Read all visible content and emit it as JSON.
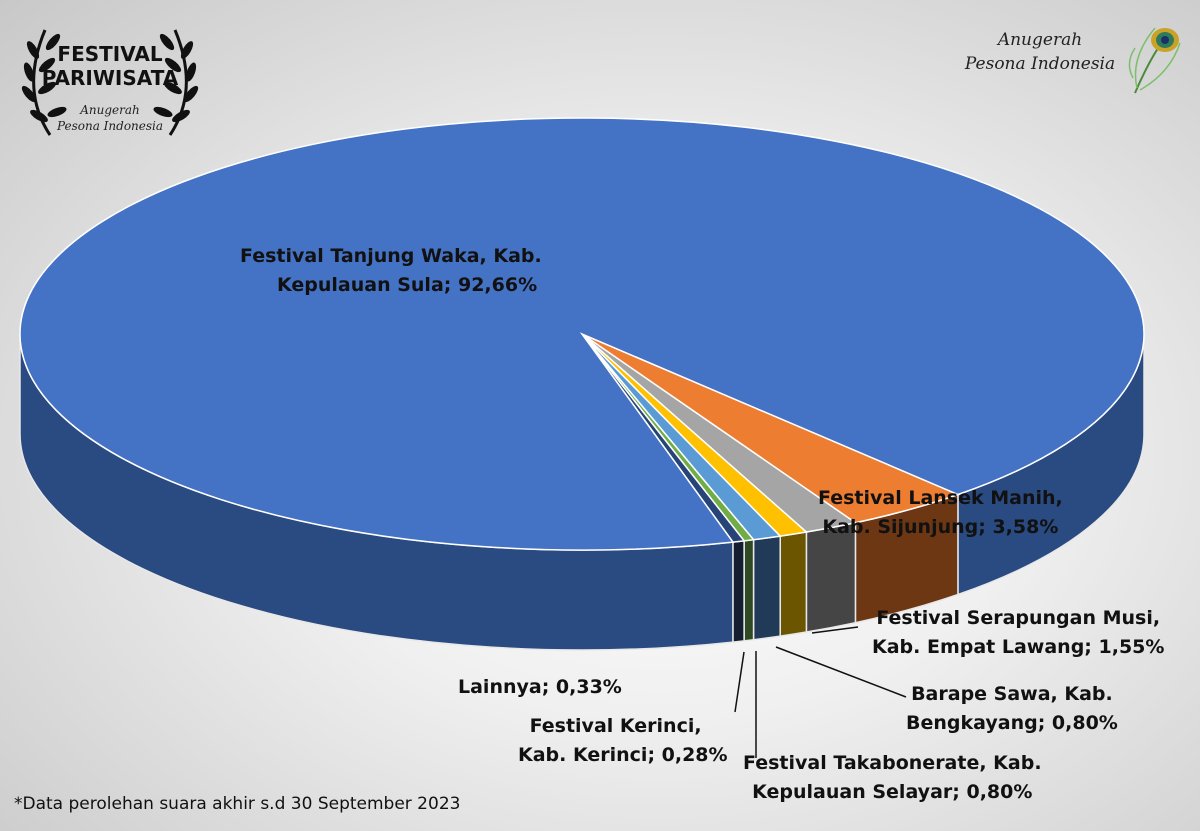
{
  "logos": {
    "left": {
      "title_line1": "FESTIVAL",
      "title_line2": "PARIWISATA",
      "sub_line1": "Anugerah",
      "sub_line2": "Pesona Indonesia"
    },
    "right": {
      "line1": "Anugerah",
      "line2": "Pesona Indonesia"
    }
  },
  "footnote": "*Data perolehan suara akhir s.d 30 September 2023",
  "chart_data": {
    "type": "pie",
    "style": "3d",
    "title": "",
    "slices": [
      {
        "label_line1": "Festival Lansek Manih,",
        "label_line2": "Kab. Sijunjung; 3,58%",
        "value": 3.58,
        "color": "#ED7D31",
        "side": "#6E3714"
      },
      {
        "label_line1": "Festival Serapungan Musi,",
        "label_line2": "Kab. Empat Lawang; 1,55%",
        "value": 1.55,
        "color": "#A5A5A5",
        "side": "#454545"
      },
      {
        "label_line1": "Barape Sawa, Kab.",
        "label_line2": "Bengkayang; 0,80%",
        "value": 0.8,
        "color": "#FFC000",
        "side": "#6B5500"
      },
      {
        "label_line1": "Festival Takabonerate, Kab.",
        "label_line2": "Kepulauan Selayar; 0,80%",
        "value": 0.8,
        "color": "#5B9BD5",
        "side": "#203A58"
      },
      {
        "label_line1": "Festival Kerinci,",
        "label_line2": "Kab. Kerinci; 0,28%",
        "value": 0.28,
        "color": "#70AD47",
        "side": "#2E4A22"
      },
      {
        "label_line1": "Lainnya; 0,33%",
        "label_line2": "",
        "value": 0.33,
        "color": "#264478",
        "side": "#141E30"
      },
      {
        "label_line1": "Festival Tanjung Waka, Kab.",
        "label_line2": "Kepulauan Sula; 92,66%",
        "value": 92.66,
        "color": "#4472C4",
        "side": "#2A4A82"
      }
    ]
  }
}
